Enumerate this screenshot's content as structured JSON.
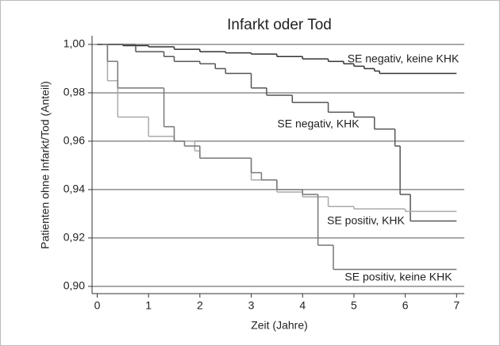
{
  "chart_data": {
    "type": "step",
    "title": "Infarkt oder Tod",
    "x_label": "Zeit (Jahre)",
    "y_label": "Patienten ohne Infarkt/Tod (Anteil)",
    "xlim": [
      -0.1,
      7.15
    ],
    "ylim": [
      0.897,
      1.0036
    ],
    "xticks": [
      0,
      1,
      2,
      3,
      4,
      5,
      6,
      7
    ],
    "yticks": [
      {
        "value": 0.9,
        "label": "0,90"
      },
      {
        "value": 0.92,
        "label": "0,92"
      },
      {
        "value": 0.94,
        "label": "0,94"
      },
      {
        "value": 0.96,
        "label": "0,96"
      },
      {
        "value": 0.98,
        "label": "0,98"
      },
      {
        "value": 1.0,
        "label": "1,00"
      }
    ],
    "grid": true,
    "series": [
      {
        "name": "SE negativ, keine KHK",
        "color": "#333333",
        "x": [
          0,
          0.5,
          1,
          1.5,
          2,
          2.5,
          3,
          3.5,
          4,
          4.5,
          4.8,
          5,
          5.2,
          5.4,
          5.5,
          7
        ],
        "y": [
          1.0,
          0.9995,
          0.999,
          0.998,
          0.997,
          0.9965,
          0.996,
          0.995,
          0.994,
          0.993,
          0.992,
          0.991,
          0.99,
          0.989,
          0.988,
          0.988
        ]
      },
      {
        "name": "SE negativ, KHK",
        "color": "#555555",
        "x": [
          0,
          0.75,
          1.3,
          1.5,
          2,
          2.3,
          2.5,
          3,
          3.3,
          3.8,
          4.5,
          5,
          5.4,
          5.8,
          5.9,
          6.1,
          7
        ],
        "y": [
          1.0,
          0.997,
          0.995,
          0.993,
          0.992,
          0.99,
          0.988,
          0.982,
          0.979,
          0.976,
          0.972,
          0.97,
          0.965,
          0.958,
          0.938,
          0.927,
          0.927
        ]
      },
      {
        "name": "SE positiv, KHK",
        "color": "#aaaaaa",
        "x": [
          0.1,
          0.2,
          0.4,
          1,
          1.5,
          1.9,
          2,
          3,
          3.5,
          4,
          4.5,
          5,
          6,
          7
        ],
        "y": [
          1.0,
          0.985,
          0.97,
          0.962,
          0.96,
          0.956,
          0.953,
          0.944,
          0.939,
          0.937,
          0.933,
          0.932,
          0.931,
          0.931
        ]
      },
      {
        "name": "SE positiv, keine KHK",
        "color": "#777777",
        "x": [
          0.1,
          0.2,
          0.4,
          1.3,
          1.5,
          1.7,
          2,
          3,
          3.2,
          3.5,
          4,
          4.3,
          4.6,
          7
        ],
        "y": [
          1.0,
          0.993,
          0.982,
          0.966,
          0.96,
          0.958,
          0.953,
          0.947,
          0.944,
          0.94,
          0.938,
          0.917,
          0.907,
          0.907
        ]
      }
    ]
  }
}
